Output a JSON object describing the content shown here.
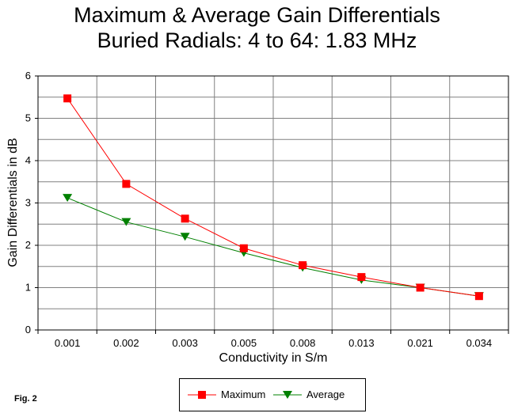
{
  "title_line1": "Maximum & Average Gain Differentials",
  "title_line2": "Buried Radials:  4 to 64: 1.83 MHz",
  "fig_label": "Fig. 2",
  "colors": {
    "maximum": "#ff0000",
    "average": "#008000",
    "grid": "#808080",
    "background": "#ffffff"
  },
  "chart_data": {
    "type": "line",
    "title": "Maximum & Average Gain Differentials Buried Radials:  4 to 64: 1.83 MHz",
    "xlabel": "Conductivity in S/m",
    "ylabel": "Gain Differentials in dB",
    "categories": [
      "0.001",
      "0.002",
      "0.003",
      "0.005",
      "0.008",
      "0.013",
      "0.021",
      "0.034"
    ],
    "ylim": [
      0,
      6
    ],
    "yticks": [
      "0",
      "1",
      "2",
      "3",
      "4",
      "5",
      "6"
    ],
    "grid": true,
    "legend_position": "bottom",
    "series": [
      {
        "name": "Maximum",
        "marker": "square",
        "values": [
          5.47,
          3.45,
          2.63,
          1.93,
          1.53,
          1.25,
          1.0,
          0.8
        ]
      },
      {
        "name": "Average",
        "marker": "triangle-down",
        "values": [
          3.12,
          2.55,
          2.2,
          1.82,
          1.47,
          1.18,
          1.0,
          0.8
        ]
      }
    ]
  }
}
